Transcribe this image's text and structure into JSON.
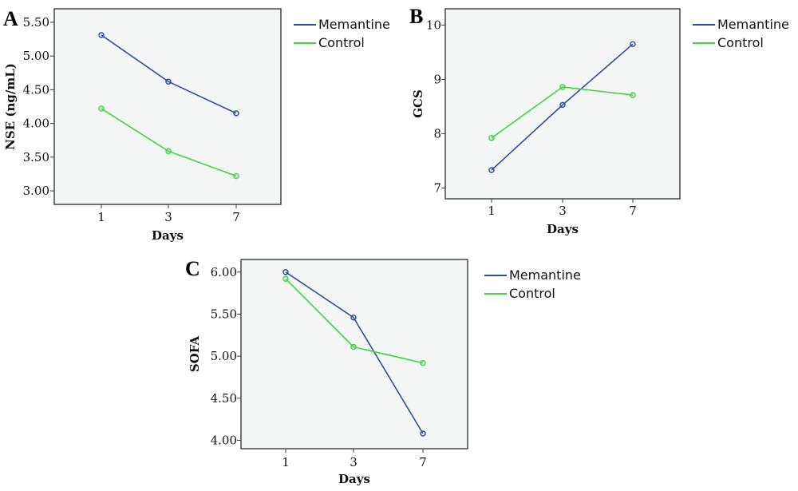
{
  "chart_data": [
    {
      "panel": "A",
      "type": "line",
      "title": "",
      "xlabel": "Days",
      "ylabel": "NSE (ng/mL)",
      "categories": [
        "1",
        "3",
        "7"
      ],
      "ylim": [
        2.8,
        5.7
      ],
      "yticks": [
        3.0,
        3.5,
        4.0,
        4.5,
        5.0,
        5.5
      ],
      "ytick_labels": [
        "3.00",
        "3.50",
        "4.00",
        "4.50",
        "5.00",
        "5.50"
      ],
      "grid": false,
      "legend_position": "right",
      "series": [
        {
          "name": "Memantine",
          "color": "#2e4f9e",
          "values": [
            5.31,
            4.62,
            4.15
          ]
        },
        {
          "name": "Control",
          "color": "#3dd63d",
          "values": [
            4.22,
            3.59,
            3.22
          ]
        }
      ]
    },
    {
      "panel": "B",
      "type": "line",
      "title": "",
      "xlabel": "Days",
      "ylabel": "GCS",
      "categories": [
        "1",
        "3",
        "7"
      ],
      "ylim": [
        6.8,
        10.3
      ],
      "yticks": [
        7,
        8,
        9,
        10
      ],
      "ytick_labels": [
        "7",
        "8",
        "9",
        "10"
      ],
      "grid": false,
      "legend_position": "right",
      "series": [
        {
          "name": "Memantine",
          "color": "#2e4f9e",
          "values": [
            7.33,
            8.53,
            9.65
          ]
        },
        {
          "name": "Control",
          "color": "#3dd63d",
          "values": [
            7.92,
            8.86,
            8.71
          ]
        }
      ]
    },
    {
      "panel": "C",
      "type": "line",
      "title": "",
      "xlabel": "Days",
      "ylabel": "SOFA",
      "categories": [
        "1",
        "3",
        "7"
      ],
      "ylim": [
        3.9,
        6.15
      ],
      "yticks": [
        4.0,
        4.5,
        5.0,
        5.5,
        6.0
      ],
      "ytick_labels": [
        "4.00",
        "4.50",
        "5.00",
        "5.50",
        "6.00"
      ],
      "grid": false,
      "legend_position": "right",
      "series": [
        {
          "name": "Memantine",
          "color": "#2e4f9e",
          "values": [
            6.0,
            5.46,
            4.08
          ]
        },
        {
          "name": "Control",
          "color": "#3dd63d",
          "values": [
            5.92,
            5.11,
            4.92
          ]
        }
      ]
    }
  ],
  "style": {
    "plot_background": "#f4f6f6",
    "frame_color": "#3a3a3a"
  }
}
